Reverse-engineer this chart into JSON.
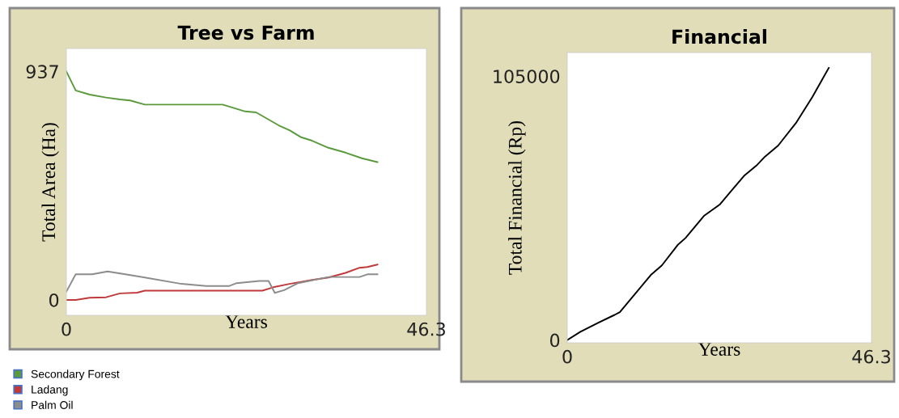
{
  "chart_data": [
    {
      "type": "line",
      "title": "Tree vs Farm",
      "xlabel": "Years",
      "ylabel": "Total Area (Ha)",
      "xlim": [
        0,
        46.3
      ],
      "ylim": [
        -63,
        1031
      ],
      "xticks": [
        0,
        46.3
      ],
      "yticks": [
        0,
        937
      ],
      "grid": false,
      "legend": "bottom",
      "series": [
        {
          "name": "Secondary Forest",
          "color": "#5a9a3c",
          "x": [
            0,
            1.2,
            3.0,
            5.1,
            6.9,
            8.2,
            10.1,
            20.1,
            23.0,
            24.4,
            27.3,
            28.7,
            30.2,
            31.6,
            33.7,
            35.9,
            38.0,
            40
          ],
          "values": [
            937,
            859,
            842,
            830,
            822,
            818,
            801,
            801,
            773,
            769,
            716,
            696,
            667,
            653,
            624,
            604,
            581,
            565
          ]
        },
        {
          "name": "Ladang",
          "color": "#c0393b",
          "x": [
            0,
            1.2,
            3.0,
            5.1,
            6.9,
            9.1,
            10.1,
            16.6,
            25.2,
            26.6,
            28.7,
            31.6,
            33.7,
            35.9,
            37.7,
            38.7,
            40
          ],
          "values": [
            0,
            0,
            9,
            11,
            27,
            30,
            38,
            38,
            38,
            52,
            66,
            82,
            92,
            111,
            132,
            135,
            145
          ]
        },
        {
          "name": "Palm Oil",
          "color": "#8c8c8c",
          "x": [
            0,
            1.2,
            3.3,
            5.3,
            7.6,
            10.1,
            14.8,
            18.0,
            20.9,
            21.9,
            24.8,
            26.0,
            26.8,
            28.0,
            29.8,
            33.7,
            37.7,
            38.7,
            40
          ],
          "values": [
            34,
            105,
            105,
            117,
            105,
            92,
            66,
            57,
            57,
            69,
            78,
            78,
            29,
            40,
            69,
            94,
            94,
            105,
            105
          ]
        }
      ]
    },
    {
      "type": "line",
      "title": "Financial",
      "xlabel": "Years",
      "ylabel": "Total Financial (Rp)",
      "xlim": [
        0,
        46.3
      ],
      "ylim": [
        -1100,
        114400
      ],
      "xticks": [
        0,
        46.3
      ],
      "yticks": [
        0,
        105000
      ],
      "grid": false,
      "series": [
        {
          "color": "#000000",
          "x": [
            0,
            2.0,
            4.8,
            7.2,
            8.0,
            12.8,
            14.4,
            16.8,
            18.0,
            20.8,
            23.2,
            24.8,
            26.9,
            28.9,
            30.1,
            32.1,
            34.9,
            37.3,
            39.8
          ],
          "values": [
            0,
            3300,
            7000,
            10000,
            11100,
            26100,
            29700,
            37800,
            40600,
            49400,
            53900,
            58900,
            65300,
            69700,
            73000,
            77400,
            86700,
            96700,
            108300
          ]
        }
      ]
    }
  ]
}
